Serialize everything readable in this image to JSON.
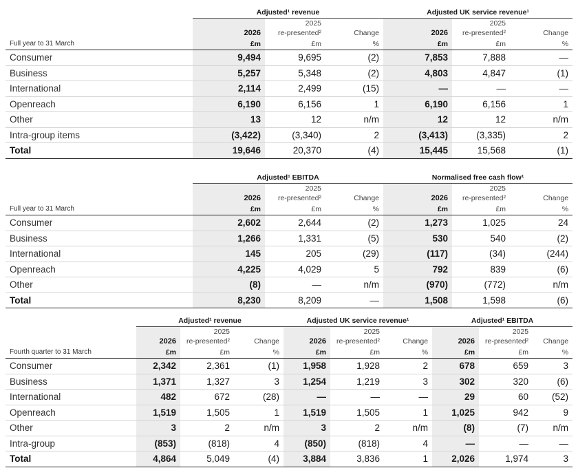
{
  "t1": {
    "groups": [
      "Adjusted¹ revenue",
      "Adjusted UK service revenue¹"
    ],
    "period": "Full year to 31 March",
    "h_year": "2026",
    "h_2025": "2025",
    "h_rep": "re-presented²",
    "h_change": "Change",
    "h_fm": "£m",
    "h_pct": "%",
    "rows": [
      {
        "label": "Consumer",
        "c": [
          "9,494",
          "9,695",
          "(2)",
          "7,853",
          "7,888",
          "—"
        ]
      },
      {
        "label": "Business",
        "c": [
          "5,257",
          "5,348",
          "(2)",
          "4,803",
          "4,847",
          "(1)"
        ]
      },
      {
        "label": "International",
        "c": [
          "2,114",
          "2,499",
          "(15)",
          "—",
          "—",
          "—"
        ]
      },
      {
        "label": "Openreach",
        "c": [
          "6,190",
          "6,156",
          "1",
          "6,190",
          "6,156",
          "1"
        ]
      },
      {
        "label": "Other",
        "c": [
          "13",
          "12",
          "n/m",
          "12",
          "12",
          "n/m"
        ]
      },
      {
        "label": "Intra-group items",
        "c": [
          "(3,422)",
          "(3,340)",
          "2",
          "(3,413)",
          "(3,335)",
          "2"
        ]
      }
    ],
    "total": {
      "label": "Total",
      "c": [
        "19,646",
        "20,370",
        "(4)",
        "15,445",
        "15,568",
        "(1)"
      ]
    }
  },
  "t2": {
    "groups": [
      "Adjusted¹ EBITDA",
      "Normalised free cash flow¹"
    ],
    "period": "Full year to 31 March",
    "h_year": "2026",
    "h_2025": "2025",
    "h_rep": "re-presented²",
    "h_change": "Change",
    "h_fm": "£m",
    "h_pct": "%",
    "rows": [
      {
        "label": "Consumer",
        "c": [
          "2,602",
          "2,644",
          "(2)",
          "1,273",
          "1,025",
          "24"
        ]
      },
      {
        "label": "Business",
        "c": [
          "1,266",
          "1,331",
          "(5)",
          "530",
          "540",
          "(2)"
        ]
      },
      {
        "label": "International",
        "c": [
          "145",
          "205",
          "(29)",
          "(117)",
          "(34)",
          "(244)"
        ]
      },
      {
        "label": "Openreach",
        "c": [
          "4,225",
          "4,029",
          "5",
          "792",
          "839",
          "(6)"
        ]
      },
      {
        "label": "Other",
        "c": [
          "(8)",
          "—",
          "n/m",
          "(970)",
          "(772)",
          "n/m"
        ]
      }
    ],
    "total": {
      "label": "Total",
      "c": [
        "8,230",
        "8,209",
        "—",
        "1,508",
        "1,598",
        "(6)"
      ]
    }
  },
  "t3": {
    "groups": [
      "Adjusted¹ revenue",
      "Adjusted UK service revenue¹",
      "Adjusted¹ EBITDA"
    ],
    "period": "Fourth quarter to 31 March",
    "h_year": "2026",
    "h_2025": "2025",
    "h_rep": "re-presented²",
    "h_change": "Change",
    "h_fm": "£m",
    "h_pct": "%",
    "rows": [
      {
        "label": "Consumer",
        "c": [
          "2,342",
          "2,361",
          "(1)",
          "1,958",
          "1,928",
          "2",
          "678",
          "659",
          "3"
        ]
      },
      {
        "label": "Business",
        "c": [
          "1,371",
          "1,327",
          "3",
          "1,254",
          "1,219",
          "3",
          "302",
          "320",
          "(6)"
        ]
      },
      {
        "label": "International",
        "c": [
          "482",
          "672",
          "(28)",
          "—",
          "—",
          "—",
          "29",
          "60",
          "(52)"
        ]
      },
      {
        "label": "Openreach",
        "c": [
          "1,519",
          "1,505",
          "1",
          "1,519",
          "1,505",
          "1",
          "1,025",
          "942",
          "9"
        ]
      },
      {
        "label": "Other",
        "c": [
          "3",
          "2",
          "n/m",
          "3",
          "2",
          "n/m",
          "(8)",
          "(7)",
          "n/m"
        ]
      },
      {
        "label": "Intra-group",
        "c": [
          "(853)",
          "(818)",
          "4",
          "(850)",
          "(818)",
          "4",
          "—",
          "—",
          "—"
        ]
      }
    ],
    "total": {
      "label": "Total",
      "c": [
        "4,864",
        "5,049",
        "(4)",
        "3,884",
        "3,836",
        "1",
        "2,026",
        "1,974",
        "3"
      ]
    }
  }
}
